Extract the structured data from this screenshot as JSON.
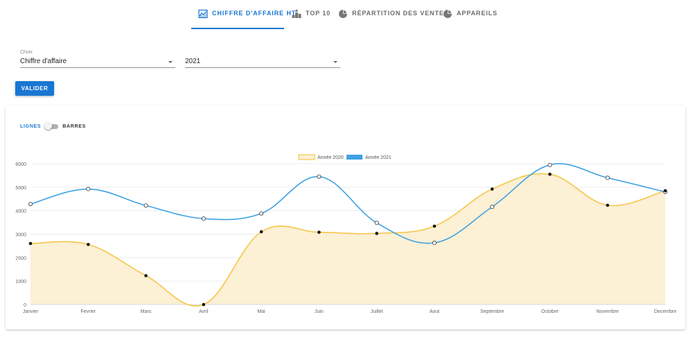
{
  "tabs": [
    {
      "label": "CHIFFRE D'AFFAIRE HT",
      "icon": "area-chart-icon",
      "active": true
    },
    {
      "label": "TOP 10",
      "icon": "podium-icon",
      "active": false
    },
    {
      "label": "RÉPARTITION DES VENTES",
      "icon": "pie-chart-icon",
      "active": false
    },
    {
      "label": "APPAREILS",
      "icon": "pie-chart-icon",
      "active": false
    }
  ],
  "form": {
    "choice_label": "Choix",
    "choice_value": "Chiffre d'affaire",
    "year_value": "2021",
    "submit_label": "VALIDER"
  },
  "toggle": {
    "left_label": "LIGNES",
    "right_label": "BARRES",
    "checked": false
  },
  "colors": {
    "accent": "#1976d2",
    "series_2020": "#f6c64a",
    "series_2020_fill": "#fcf0d5",
    "series_2021": "#3fa2e4"
  },
  "chart_data": {
    "type": "line",
    "categories": [
      "Janvier",
      "Fevrier",
      "Mars",
      "Avril",
      "Mai",
      "Juin",
      "Juillet",
      "Aout",
      "Septembre",
      "Octobre",
      "Novembre",
      "Decembre"
    ],
    "series": [
      {
        "name": "Année 2020",
        "values": [
          2600,
          2560,
          1230,
          0,
          3100,
          3080,
          3030,
          3340,
          4920,
          5550,
          4230,
          4850
        ],
        "fill": true
      },
      {
        "name": "Année 2021",
        "values": [
          4280,
          4920,
          4220,
          3660,
          3880,
          5450,
          3480,
          2630,
          4160,
          5950,
          5400,
          4800
        ],
        "fill": false
      }
    ],
    "yticks": [
      0,
      1000,
      2000,
      3000,
      4000,
      5000,
      6000
    ],
    "ylim": [
      0,
      6000
    ],
    "legend_position": "top",
    "grid": true
  }
}
